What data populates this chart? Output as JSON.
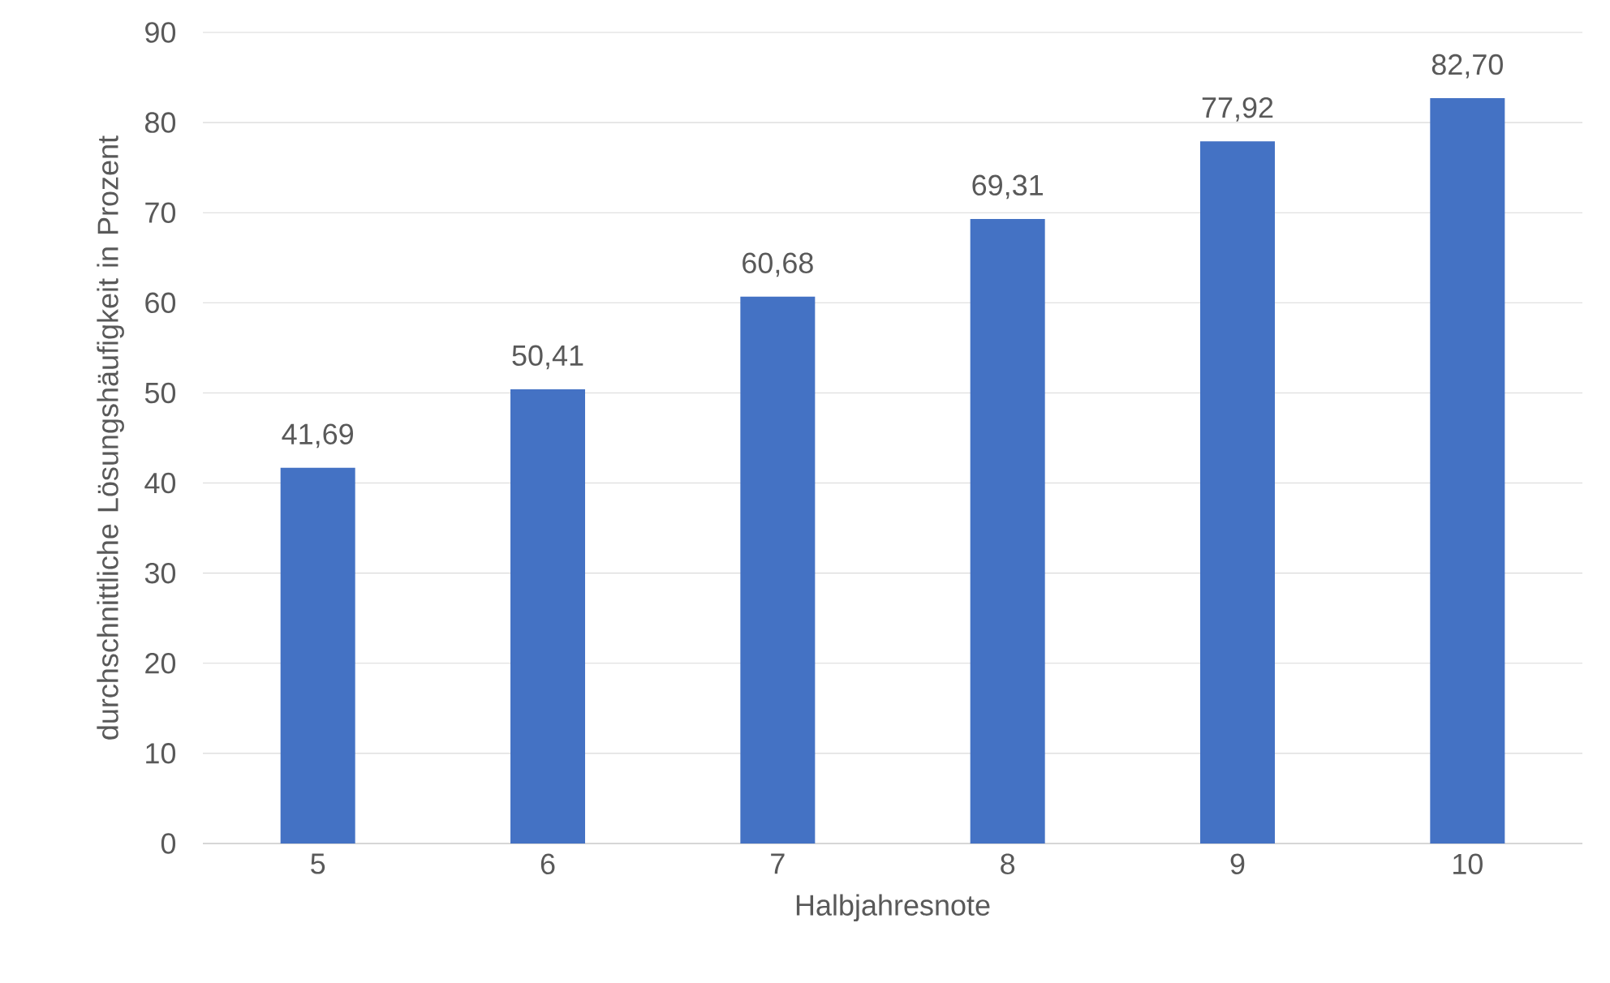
{
  "chart_data": {
    "type": "bar",
    "xlabel": "Halbjahresnote",
    "ylabel": "durchschnittliche Lösungshäufigkeit in Prozent",
    "categories": [
      "5",
      "6",
      "7",
      "8",
      "9",
      "10"
    ],
    "values": [
      41.69,
      50.41,
      60.68,
      69.31,
      77.92,
      82.7
    ],
    "value_labels": [
      "41,69",
      "50,41",
      "60,68",
      "69,31",
      "77,92",
      "82,70"
    ],
    "color": "#4472c4",
    "ylim": [
      0,
      90
    ],
    "yticks": [
      0,
      10,
      20,
      30,
      40,
      50,
      60,
      70,
      80,
      90
    ],
    "grid": "y"
  }
}
